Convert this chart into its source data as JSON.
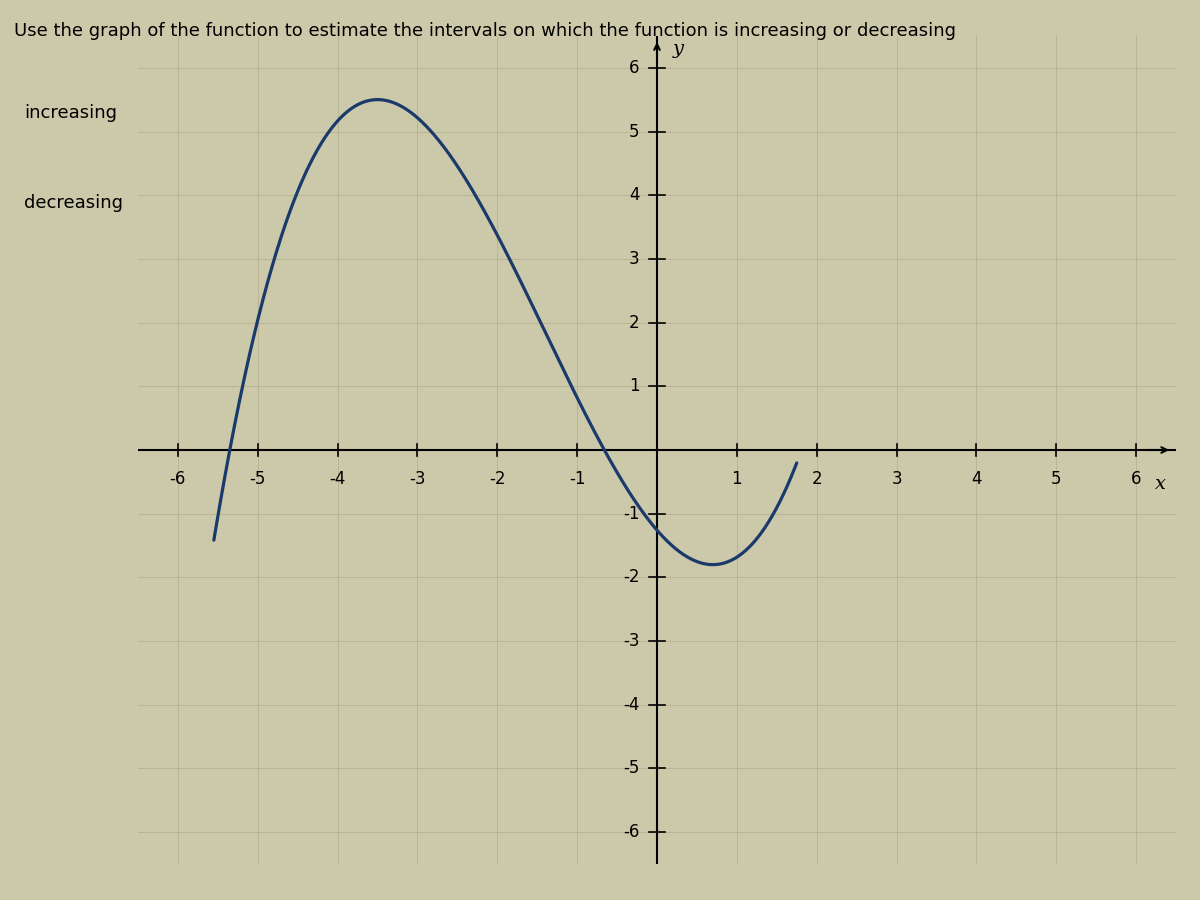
{
  "title": "Use the graph of the function to estimate the intervals on which the function is increasing or decreasing",
  "increasing_label": "increasing",
  "decreasing_label": "decreasing",
  "xlim": [
    -6.5,
    6.5
  ],
  "ylim": [
    -6.5,
    6.5
  ],
  "x_ticks": [
    -6,
    -5,
    -4,
    -3,
    -2,
    -1,
    1,
    2,
    3,
    4,
    5,
    6
  ],
  "y_ticks": [
    -6,
    -5,
    -4,
    -3,
    -2,
    -1,
    1,
    2,
    3,
    4,
    5,
    6
  ],
  "xlabel": "x",
  "ylabel": "y",
  "curve_color": "#1a3a6b",
  "curve_linewidth": 2.3,
  "background_color": "#ccc9aa",
  "grid_color": "#b5b090",
  "grid_linewidth": 0.6,
  "axis_linewidth": 1.5,
  "title_fontsize": 13,
  "label_fontsize": 13,
  "tick_fontsize": 12,
  "box_facecolor": "#c5bc9e",
  "box_edgecolor": "#333333",
  "figure_width": 12,
  "figure_height": 9,
  "curve_a": 0.228,
  "curve_b": 0.684,
  "curve_c": -2.052,
  "curve_d": -0.66,
  "x_curve_start": -5.55,
  "x_curve_end": 1.75
}
